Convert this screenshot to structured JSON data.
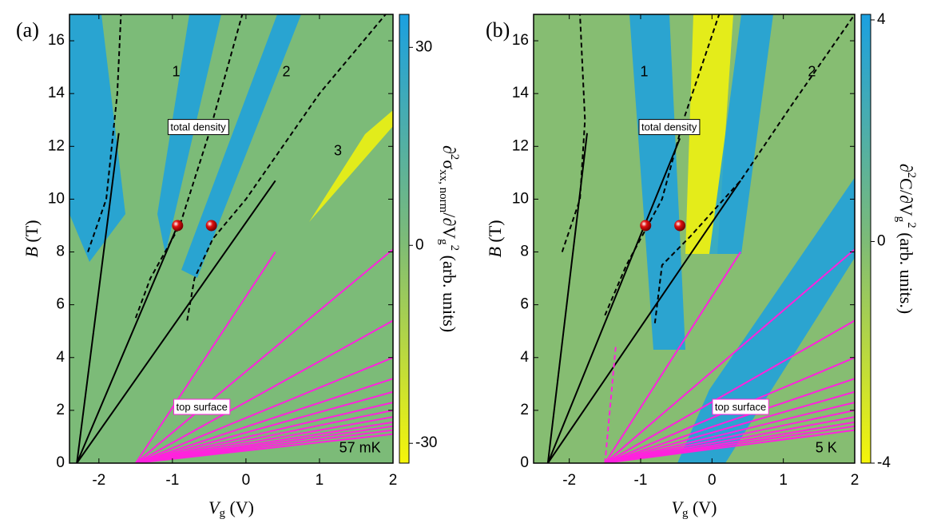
{
  "chart_data": [
    {
      "type": "heatmap",
      "panel_label": "(a)",
      "xlabel": {
        "symbol": "V",
        "subscript": "g",
        "unit": " (V)"
      },
      "ylabel": {
        "symbol": "B",
        "unit": " (T)"
      },
      "xlim": [
        -2.4,
        2
      ],
      "xticks": [
        -2,
        -1,
        0,
        1,
        2
      ],
      "ylim": [
        0,
        17
      ],
      "yticks": [
        0,
        2,
        4,
        6,
        8,
        10,
        12,
        14,
        16
      ],
      "colorbar": {
        "clim": [
          -33,
          35
        ],
        "ticks": [
          -30,
          0,
          30
        ],
        "colors": [
          "#f5f50a",
          "#7cbb78",
          "#1ba0e0"
        ],
        "label": [
          {
            "text": "∂"
          },
          {
            "text": "2",
            "shift": "super"
          },
          {
            "text": "σ"
          },
          {
            "text": "xx, norm",
            "shift": "sub"
          },
          {
            "text": "/∂V"
          },
          {
            "text": "g",
            "shift": "sub"
          },
          {
            "text": "2",
            "shift": "super"
          },
          {
            "text": " (arb. units)"
          }
        ]
      },
      "background": "#7cbb78",
      "annotations": [
        "1",
        "2",
        "3",
        "total density",
        "top surface",
        "57 mK"
      ],
      "points": {
        "x": [
          -0.93,
          -0.47
        ],
        "values": [
          9.0,
          9.0
        ],
        "color": "#e01010"
      },
      "series": [
        {
          "color": "#000000",
          "x": [
            -2.3,
            -1.73
          ],
          "values": [
            0,
            12.5
          ]
        },
        {
          "color": "#000000",
          "x": [
            -2.3,
            -0.93
          ],
          "values": [
            0,
            9.0
          ]
        },
        {
          "color": "#000000",
          "x": [
            -2.3,
            0.4
          ],
          "values": [
            0,
            10.7
          ]
        },
        {
          "color": "#000000",
          "dash": true,
          "x": [
            -2.15,
            -1.9,
            -1.75,
            -1.7
          ],
          "values": [
            8,
            10,
            14,
            17
          ]
        },
        {
          "color": "#000000",
          "dash": true,
          "x": [
            -1.5,
            -1.3,
            -0.9,
            -0.5,
            -0.05
          ],
          "values": [
            5.5,
            7,
            9,
            12.5,
            17
          ]
        },
        {
          "color": "#000000",
          "dash": true,
          "x": [
            -0.8,
            -0.7,
            -0.45,
            0,
            1,
            1.9
          ],
          "values": [
            5.4,
            7,
            8.5,
            10,
            14,
            17
          ]
        },
        {
          "color": "#ff22dd",
          "x": [
            -1.5,
            0.4
          ],
          "values": [
            0,
            8.0
          ]
        },
        {
          "color": "#ff22dd",
          "x": [
            -1.5,
            2
          ],
          "values": [
            0,
            8.1
          ]
        },
        {
          "color": "#ff22dd",
          "x": [
            -1.5,
            2
          ],
          "values": [
            0,
            5.4
          ]
        },
        {
          "color": "#ff22dd",
          "x": [
            -1.5,
            2
          ],
          "values": [
            0,
            4.0
          ]
        },
        {
          "color": "#ff22dd",
          "x": [
            -1.5,
            2
          ],
          "values": [
            0,
            3.2
          ]
        },
        {
          "color": "#ff22dd",
          "x": [
            -1.5,
            2
          ],
          "values": [
            0,
            2.7
          ]
        },
        {
          "color": "#ff22dd",
          "x": [
            -1.5,
            2
          ],
          "values": [
            0,
            2.3
          ]
        },
        {
          "color": "#ff22dd",
          "x": [
            -1.5,
            2
          ],
          "values": [
            0,
            2.0
          ]
        },
        {
          "color": "#ff22dd",
          "x": [
            -1.5,
            2
          ],
          "values": [
            0,
            1.75
          ]
        },
        {
          "color": "#ff22dd",
          "x": [
            -1.5,
            2
          ],
          "values": [
            0,
            1.55
          ]
        },
        {
          "color": "#ff22dd",
          "x": [
            -1.5,
            2
          ],
          "values": [
            0,
            1.4
          ]
        },
        {
          "color": "#ff22dd",
          "x": [
            -1.5,
            2
          ],
          "values": [
            0,
            1.25
          ]
        },
        {
          "color": "#ff22dd",
          "x": [
            -1.5,
            2
          ],
          "values": [
            0,
            1.1
          ]
        }
      ]
    },
    {
      "type": "heatmap",
      "panel_label": "(b)",
      "xlabel": {
        "symbol": "V",
        "subscript": "g",
        "unit": " (V)"
      },
      "ylabel": {
        "symbol": "B",
        "unit": " (T)"
      },
      "xlim": [
        -2.5,
        2
      ],
      "xticks": [
        -2,
        -1,
        0,
        1,
        2
      ],
      "ylim": [
        0,
        17
      ],
      "yticks": [
        0,
        2,
        4,
        6,
        8,
        10,
        12,
        14,
        16
      ],
      "colorbar": {
        "clim": [
          -4,
          4.1
        ],
        "ticks": [
          -4,
          0,
          4
        ],
        "colors": [
          "#f5f50a",
          "#7cbb78",
          "#1ba0e0"
        ],
        "label": [
          {
            "text": "∂"
          },
          {
            "text": "2",
            "shift": "super"
          },
          {
            "text": "C/∂V"
          },
          {
            "text": "g",
            "shift": "sub"
          },
          {
            "text": "2",
            "shift": "super"
          },
          {
            "text": " (arb. units.)"
          }
        ]
      },
      "background": "#86bd72",
      "annotations": [
        "1",
        "2",
        "total density",
        "top surface",
        "5 K"
      ],
      "points": {
        "x": [
          -0.93,
          -0.45
        ],
        "values": [
          9.0,
          9.0
        ],
        "color": "#e01010"
      },
      "series": [
        {
          "color": "#000000",
          "x": [
            -2.3,
            -1.75
          ],
          "values": [
            0,
            12.5
          ]
        },
        {
          "color": "#000000",
          "x": [
            -2.3,
            -0.45
          ],
          "values": [
            0,
            12.3
          ]
        },
        {
          "color": "#000000",
          "x": [
            -2.3,
            0.4
          ],
          "values": [
            0,
            10.7
          ]
        },
        {
          "color": "#000000",
          "dash": true,
          "x": [
            -2.1,
            -1.85,
            -1.78,
            -1.85
          ],
          "values": [
            8,
            10,
            13,
            17
          ]
        },
        {
          "color": "#000000",
          "dash": true,
          "x": [
            -1.5,
            -1.2,
            -0.7,
            -0.4,
            0.1
          ],
          "values": [
            5.6,
            7.5,
            10,
            13,
            17
          ]
        },
        {
          "color": "#000000",
          "dash": true,
          "x": [
            -0.8,
            -0.7,
            -0.3,
            0.4,
            1.1,
            2
          ],
          "values": [
            5.3,
            7.5,
            8.6,
            10.7,
            13.5,
            17
          ]
        },
        {
          "color": "#ff22dd",
          "dash": true,
          "x": [
            -1.5,
            -1.35
          ],
          "values": [
            0,
            4.4
          ]
        },
        {
          "color": "#ff22dd",
          "x": [
            -1.5,
            0.4
          ],
          "values": [
            0,
            8.0
          ]
        },
        {
          "color": "#ff22dd",
          "x": [
            -1.5,
            2
          ],
          "values": [
            0,
            8.1
          ]
        },
        {
          "color": "#ff22dd",
          "x": [
            -1.5,
            2
          ],
          "values": [
            0,
            5.4
          ]
        },
        {
          "color": "#ff22dd",
          "x": [
            -1.5,
            2
          ],
          "values": [
            0,
            4.0
          ]
        },
        {
          "color": "#ff22dd",
          "x": [
            -1.5,
            2
          ],
          "values": [
            0,
            3.2
          ]
        },
        {
          "color": "#ff22dd",
          "x": [
            -1.5,
            2
          ],
          "values": [
            0,
            2.7
          ]
        },
        {
          "color": "#ff22dd",
          "x": [
            -1.5,
            2
          ],
          "values": [
            0,
            2.3
          ]
        },
        {
          "color": "#ff22dd",
          "x": [
            -1.5,
            2
          ],
          "values": [
            0,
            2.0
          ]
        },
        {
          "color": "#ff22dd",
          "x": [
            -1.5,
            2
          ],
          "values": [
            0,
            1.75
          ]
        },
        {
          "color": "#ff22dd",
          "x": [
            -1.5,
            2
          ],
          "values": [
            0,
            1.55
          ]
        },
        {
          "color": "#ff22dd",
          "x": [
            -1.5,
            2
          ],
          "values": [
            0,
            1.4
          ]
        },
        {
          "color": "#ff22dd",
          "x": [
            -1.5,
            2
          ],
          "values": [
            0,
            1.25
          ]
        }
      ]
    }
  ]
}
